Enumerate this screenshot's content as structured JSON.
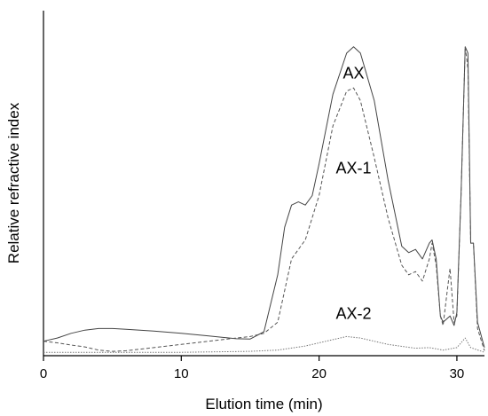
{
  "chart_data": {
    "type": "line",
    "title": "",
    "xlabel": "Elution time (min)",
    "ylabel": "Relative refractive index",
    "xlim": [
      0,
      32
    ],
    "ylim": [
      0,
      1
    ],
    "x_ticks": [
      0,
      10,
      20,
      30
    ],
    "y_ticks": [],
    "grid": false,
    "legend": "none",
    "series": [
      {
        "name": "AX",
        "color": "#444444",
        "dash": "solid",
        "points": [
          [
            0,
            0.04
          ],
          [
            1,
            0.05
          ],
          [
            2,
            0.065
          ],
          [
            3,
            0.075
          ],
          [
            4,
            0.08
          ],
          [
            5,
            0.08
          ],
          [
            6,
            0.078
          ],
          [
            8,
            0.072
          ],
          [
            10,
            0.065
          ],
          [
            12,
            0.057
          ],
          [
            14,
            0.048
          ],
          [
            15,
            0.047
          ],
          [
            16,
            0.07
          ],
          [
            17,
            0.25
          ],
          [
            17.5,
            0.4
          ],
          [
            18,
            0.47
          ],
          [
            18.5,
            0.48
          ],
          [
            19,
            0.47
          ],
          [
            19.5,
            0.5
          ],
          [
            20,
            0.6
          ],
          [
            21,
            0.82
          ],
          [
            22,
            0.95
          ],
          [
            22.5,
            0.97
          ],
          [
            23,
            0.95
          ],
          [
            24,
            0.8
          ],
          [
            25,
            0.55
          ],
          [
            26,
            0.34
          ],
          [
            26.5,
            0.32
          ],
          [
            27,
            0.33
          ],
          [
            27.5,
            0.3
          ],
          [
            28,
            0.35
          ],
          [
            28.2,
            0.36
          ],
          [
            28.5,
            0.3
          ],
          [
            28.8,
            0.12
          ],
          [
            29,
            0.1
          ],
          [
            29.5,
            0.12
          ],
          [
            29.8,
            0.09
          ],
          [
            30,
            0.13
          ],
          [
            30.3,
            0.5
          ],
          [
            30.6,
            0.97
          ],
          [
            30.8,
            0.95
          ],
          [
            31,
            0.35
          ],
          [
            31.2,
            0.35
          ],
          [
            31.5,
            0.1
          ],
          [
            32,
            0.02
          ]
        ]
      },
      {
        "name": "AX-1",
        "color": "#555555",
        "dash": "dashed",
        "points": [
          [
            0,
            0.04
          ],
          [
            1,
            0.035
          ],
          [
            2,
            0.028
          ],
          [
            3,
            0.022
          ],
          [
            4,
            0.012
          ],
          [
            5,
            0.008
          ],
          [
            6,
            0.01
          ],
          [
            8,
            0.02
          ],
          [
            10,
            0.03
          ],
          [
            12,
            0.04
          ],
          [
            14,
            0.05
          ],
          [
            15,
            0.055
          ],
          [
            16,
            0.065
          ],
          [
            17,
            0.1
          ],
          [
            17.5,
            0.2
          ],
          [
            18,
            0.3
          ],
          [
            18.5,
            0.33
          ],
          [
            19,
            0.36
          ],
          [
            20,
            0.5
          ],
          [
            21,
            0.72
          ],
          [
            22,
            0.83
          ],
          [
            22.5,
            0.84
          ],
          [
            23,
            0.8
          ],
          [
            24,
            0.62
          ],
          [
            25,
            0.43
          ],
          [
            26,
            0.28
          ],
          [
            26.5,
            0.25
          ],
          [
            27,
            0.26
          ],
          [
            27.5,
            0.23
          ],
          [
            28,
            0.3
          ],
          [
            28.2,
            0.35
          ],
          [
            28.5,
            0.28
          ],
          [
            28.8,
            0.12
          ],
          [
            29,
            0.09
          ],
          [
            29.3,
            0.2
          ],
          [
            29.5,
            0.27
          ],
          [
            29.8,
            0.1
          ],
          [
            30,
            0.12
          ],
          [
            30.3,
            0.5
          ],
          [
            30.6,
            0.97
          ],
          [
            30.8,
            0.9
          ],
          [
            31,
            0.35
          ],
          [
            31.2,
            0.35
          ],
          [
            31.5,
            0.08
          ],
          [
            32,
            0.01
          ]
        ]
      },
      {
        "name": "AX-2",
        "color": "#777777",
        "dash": "dotted",
        "points": [
          [
            0,
            0.005
          ],
          [
            5,
            0.005
          ],
          [
            10,
            0.005
          ],
          [
            15,
            0.008
          ],
          [
            17,
            0.012
          ],
          [
            19,
            0.025
          ],
          [
            21,
            0.045
          ],
          [
            22,
            0.055
          ],
          [
            23,
            0.05
          ],
          [
            25,
            0.03
          ],
          [
            27,
            0.018
          ],
          [
            28,
            0.02
          ],
          [
            29,
            0.012
          ],
          [
            30,
            0.02
          ],
          [
            30.6,
            0.05
          ],
          [
            31,
            0.02
          ],
          [
            32,
            0.005
          ]
        ]
      }
    ],
    "annotations": [
      {
        "text": "AX",
        "x": 22.5,
        "y": 0.87
      },
      {
        "text": "AX-1",
        "x": 22.5,
        "y": 0.57
      },
      {
        "text": "AX-2",
        "x": 22.5,
        "y": 0.11
      }
    ]
  }
}
